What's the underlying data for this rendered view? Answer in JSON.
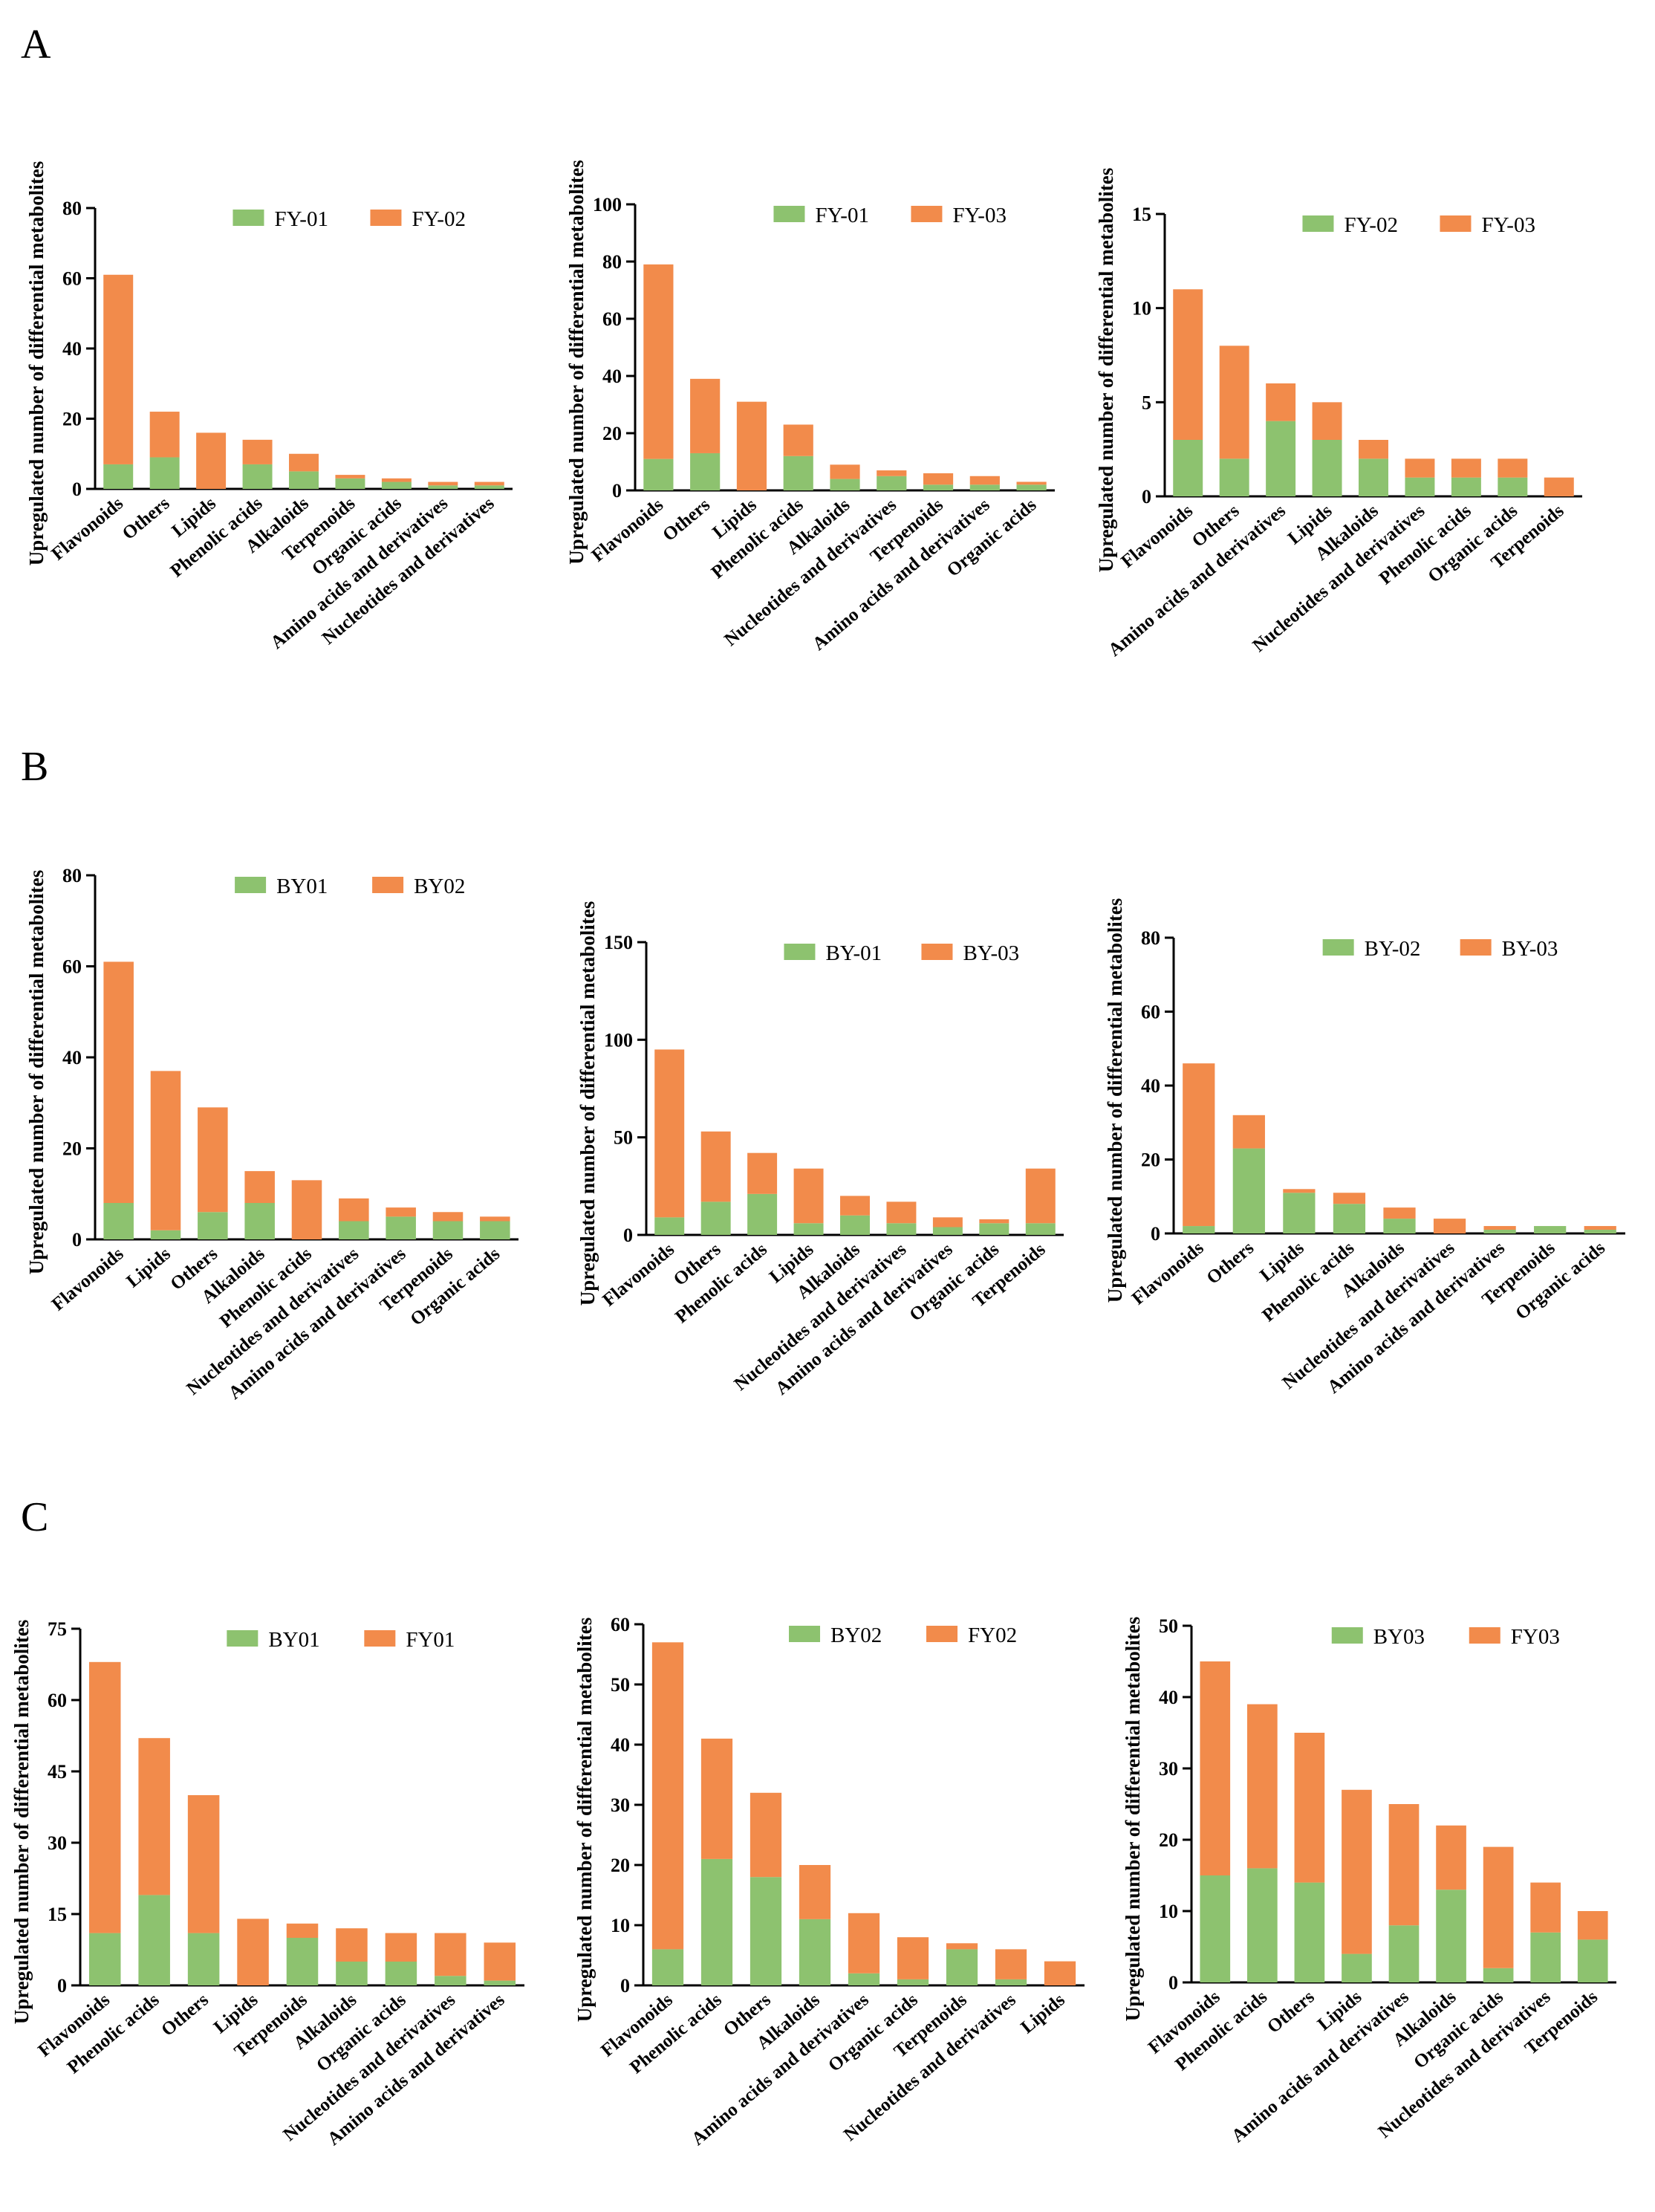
{
  "panels": [
    {
      "letter": "A"
    },
    {
      "letter": "B"
    },
    {
      "letter": "C"
    }
  ],
  "colors": {
    "lower": "#8dc26f",
    "upper": "#f28b4b",
    "axis": "#000000"
  },
  "chart_data": [
    {
      "type": "bar",
      "stacked": true,
      "panel": "A",
      "ylabel": "Upregulated number of differential metabolites",
      "ylim": [
        0,
        80
      ],
      "yticks": [
        0,
        20,
        40,
        60,
        80
      ],
      "categories": [
        "Flavonoids",
        "Others",
        "Lipids",
        "Phenolic acids",
        "Alkaloids",
        "Terpenoids",
        "Organic acids",
        "Amino acids and derivatives",
        "Nucleotides and derivatives"
      ],
      "series": [
        {
          "name": "FY-01",
          "values": [
            7,
            9,
            0,
            7,
            5,
            3,
            2,
            1,
            1
          ]
        },
        {
          "name": "FY-02",
          "values": [
            54,
            13,
            16,
            7,
            5,
            1,
            1,
            1,
            1
          ]
        }
      ],
      "legend_position": "top-right"
    },
    {
      "type": "bar",
      "stacked": true,
      "panel": "A",
      "ylabel": "Upregulated number of differential metabolites",
      "ylim": [
        0,
        100
      ],
      "yticks": [
        0,
        20,
        40,
        60,
        80,
        100
      ],
      "categories": [
        "Flavonoids",
        "Others",
        "Lipids",
        "Phenolic acids",
        "Alkaloids",
        "Nucleotides and derivatives",
        "Terpenoids",
        "Amino acids and derivatives",
        "Organic acids"
      ],
      "series": [
        {
          "name": "FY-01",
          "values": [
            11,
            13,
            0,
            12,
            4,
            5,
            2,
            2,
            2
          ]
        },
        {
          "name": "FY-03",
          "values": [
            68,
            26,
            31,
            11,
            5,
            2,
            4,
            3,
            1
          ]
        }
      ],
      "legend_position": "top-right"
    },
    {
      "type": "bar",
      "stacked": true,
      "panel": "A",
      "ylabel": "Upregulated number of differential metabolites",
      "ylim": [
        0,
        15
      ],
      "yticks": [
        0,
        5,
        10,
        15
      ],
      "categories": [
        "Flavonoids",
        "Others",
        "Amino acids and derivatives",
        "Lipids",
        "Alkaloids",
        "Nucleotides and derivatives",
        "Phenolic acids",
        "Organic acids",
        "Terpenoids"
      ],
      "series": [
        {
          "name": "FY-02",
          "values": [
            3,
            2,
            4,
            3,
            2,
            1,
            1,
            1,
            0
          ]
        },
        {
          "name": "FY-03",
          "values": [
            8,
            6,
            2,
            2,
            1,
            1,
            1,
            1,
            1
          ]
        }
      ],
      "legend_position": "top-right"
    },
    {
      "type": "bar",
      "stacked": true,
      "panel": "B",
      "ylabel": "Upregulated number of differential metabolites",
      "ylim": [
        0,
        80
      ],
      "yticks": [
        0,
        20,
        40,
        60,
        80
      ],
      "categories": [
        "Flavonoids",
        "Lipids",
        "Others",
        "Alkaloids",
        "Phenolic acids",
        "Nucleotides and derivatives",
        "Amino acids and derivatives",
        "Terpenoids",
        "Organic acids"
      ],
      "series": [
        {
          "name": "BY01",
          "values": [
            8,
            2,
            6,
            8,
            0,
            4,
            5,
            4,
            4
          ]
        },
        {
          "name": "BY02",
          "values": [
            53,
            35,
            23,
            7,
            13,
            5,
            2,
            2,
            1
          ]
        }
      ],
      "legend_position": "top-right"
    },
    {
      "type": "bar",
      "stacked": true,
      "panel": "B",
      "ylabel": "Upregulated number of differential metabolites",
      "ylim": [
        0,
        150
      ],
      "yticks": [
        0,
        50,
        100,
        150
      ],
      "categories": [
        "Flavonoids",
        "Others",
        "Phenolic acids",
        "Lipids",
        "Alkaloids",
        "Nucleotides and derivatives",
        "Amino acids and derivatives",
        "Organic acids",
        "Terpenoids"
      ],
      "series": [
        {
          "name": "BY-01",
          "values": [
            9,
            17,
            21,
            6,
            10,
            6,
            4,
            6,
            6
          ]
        },
        {
          "name": "BY-03",
          "values": [
            86,
            36,
            21,
            28,
            10,
            11,
            5,
            2,
            28
          ]
        }
      ],
      "legend_position": "top-right"
    },
    {
      "type": "bar",
      "stacked": true,
      "panel": "B",
      "ylabel": "Upregulated number of differential metabolites",
      "ylim": [
        0,
        80
      ],
      "yticks": [
        0,
        20,
        40,
        60,
        80
      ],
      "categories": [
        "Flavonoids",
        "Others",
        "Lipids",
        "Phenolic acids",
        "Alkaloids",
        "Nucleotides and derivatives",
        "Amino acids and derivatives",
        "Terpenoids",
        "Organic acids"
      ],
      "series": [
        {
          "name": "BY-02",
          "values": [
            2,
            23,
            11,
            8,
            4,
            0,
            1,
            2,
            1
          ]
        },
        {
          "name": "BY-03",
          "values": [
            44,
            9,
            1,
            3,
            3,
            4,
            1,
            0,
            1
          ]
        }
      ],
      "legend_position": "top-right"
    },
    {
      "type": "bar",
      "stacked": true,
      "panel": "C",
      "ylabel": "Upregulated number of differential metabolites",
      "ylim": [
        0,
        75
      ],
      "yticks": [
        0,
        15,
        30,
        45,
        60,
        75
      ],
      "categories": [
        "Flavonoids",
        "Phenolic acids",
        "Others",
        "Lipids",
        "Terpenoids",
        "Alkaloids",
        "Organic acids",
        "Nucleotides and derivatives",
        "Amino acids and derivatives"
      ],
      "series": [
        {
          "name": "BY01",
          "values": [
            11,
            19,
            11,
            0,
            10,
            5,
            5,
            2,
            1
          ]
        },
        {
          "name": "FY01",
          "values": [
            57,
            33,
            29,
            14,
            3,
            7,
            6,
            9,
            8
          ]
        }
      ],
      "legend_position": "top-right"
    },
    {
      "type": "bar",
      "stacked": true,
      "panel": "C",
      "ylabel": "Upregulated number of differential metabolites",
      "ylim": [
        0,
        60
      ],
      "yticks": [
        0,
        10,
        20,
        30,
        40,
        50,
        60
      ],
      "categories": [
        "Flavonoids",
        "Phenolic acids",
        "Others",
        "Alkaloids",
        "Amino acids and derivatives",
        "Organic acids",
        "Terpenoids",
        "Nucleotides and derivatives",
        "Lipids"
      ],
      "series": [
        {
          "name": "BY02",
          "values": [
            6,
            21,
            18,
            11,
            2,
            1,
            6,
            1,
            0
          ]
        },
        {
          "name": "FY02",
          "values": [
            51,
            20,
            14,
            9,
            10,
            7,
            1,
            5,
            4
          ]
        }
      ],
      "legend_position": "top-right"
    },
    {
      "type": "bar",
      "stacked": true,
      "panel": "C",
      "ylabel": "Upregulated number of differential metabolites",
      "ylim": [
        0,
        50
      ],
      "yticks": [
        0,
        10,
        20,
        30,
        40,
        50
      ],
      "categories": [
        "Flavonoids",
        "Phenolic acids",
        "Others",
        "Lipids",
        "Amino acids and derivatives",
        "Alkaloids",
        "Organic acids",
        "Nucleotides and derivatives",
        "Terpenoids"
      ],
      "series": [
        {
          "name": "BY03",
          "values": [
            15,
            16,
            14,
            4,
            8,
            13,
            2,
            7,
            6
          ]
        },
        {
          "name": "FY03",
          "values": [
            30,
            23,
            21,
            23,
            17,
            9,
            17,
            7,
            4
          ]
        }
      ],
      "legend_position": "top-right"
    }
  ]
}
